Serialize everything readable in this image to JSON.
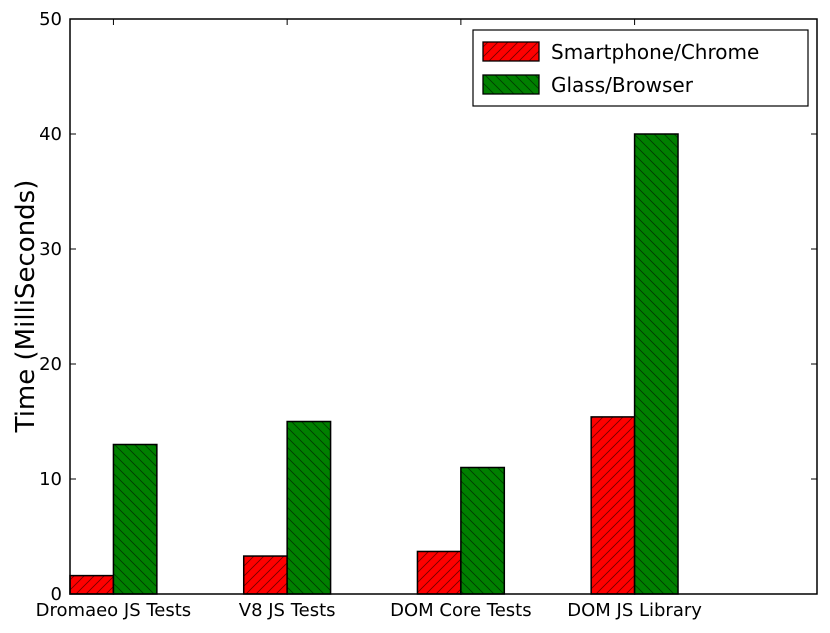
{
  "chart_data": {
    "type": "bar",
    "title": "",
    "xlabel": "",
    "ylabel": "Time (MilliSeconds)",
    "ylim": [
      0,
      50
    ],
    "yticks": [
      0,
      10,
      20,
      30,
      40,
      50
    ],
    "categories": [
      "Dromaeo JS Tests",
      "V8 JS Tests",
      "DOM Core Tests",
      "DOM JS Library"
    ],
    "series": [
      {
        "name": "Smartphone/Chrome",
        "color": "#ff0000",
        "hatch": "forward-diagonal",
        "values": [
          1.6,
          3.3,
          3.7,
          15.4
        ]
      },
      {
        "name": "Glass/Browser",
        "color": "#008000",
        "hatch": "back-diagonal",
        "values": [
          13,
          15,
          11,
          40
        ]
      }
    ],
    "legend": {
      "position": "top-right"
    },
    "grid": false
  }
}
